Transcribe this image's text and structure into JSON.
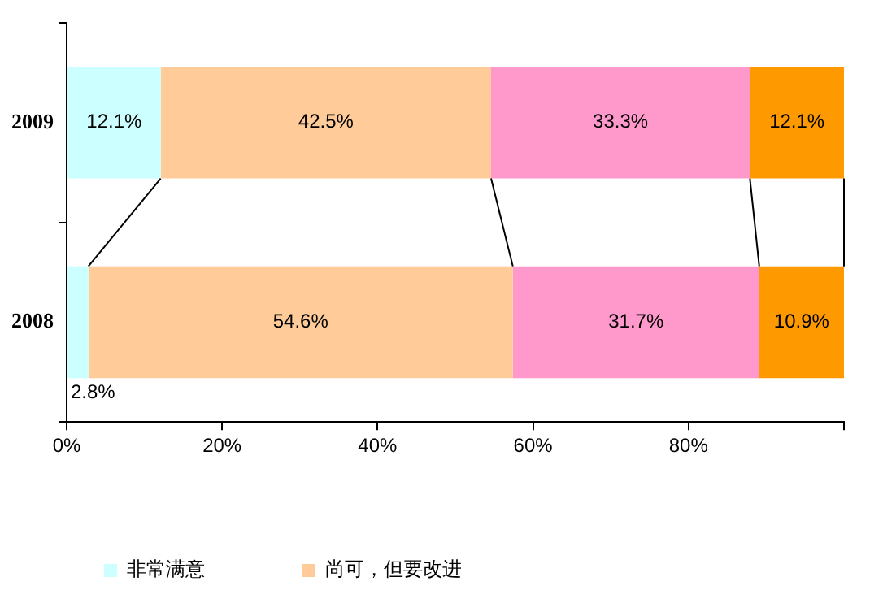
{
  "chart_data": {
    "type": "bar",
    "orientation": "horizontal",
    "stacked": true,
    "categories": [
      "2009",
      "2008"
    ],
    "series": [
      {
        "name": "非常满意",
        "color": "#ccffff",
        "values": [
          12.1,
          2.8
        ],
        "value_labels": [
          "12.1%",
          "2.8%"
        ]
      },
      {
        "name": "尚可，但要改进",
        "color": "#ffcc99",
        "values": [
          42.5,
          54.6
        ],
        "value_labels": [
          "42.5%",
          "54.6%"
        ]
      },
      {
        "color": "#ff99cc",
        "values": [
          33.3,
          31.7
        ],
        "value_labels": [
          "33.3%",
          "31.7%"
        ]
      },
      {
        "color": "#ff9900",
        "values": [
          12.1,
          10.9
        ],
        "value_labels": [
          "12.1%",
          "10.9%"
        ]
      }
    ],
    "xlim": [
      0,
      100
    ],
    "xticks": [
      {
        "value": 0,
        "label": "0%"
      },
      {
        "value": 20,
        "label": "20%"
      },
      {
        "value": 40,
        "label": "40%"
      },
      {
        "value": 60,
        "label": "60%"
      },
      {
        "value": 80,
        "label": "80%"
      },
      {
        "value": 100,
        "label": null
      }
    ],
    "grid": false,
    "legend": "bottom"
  }
}
